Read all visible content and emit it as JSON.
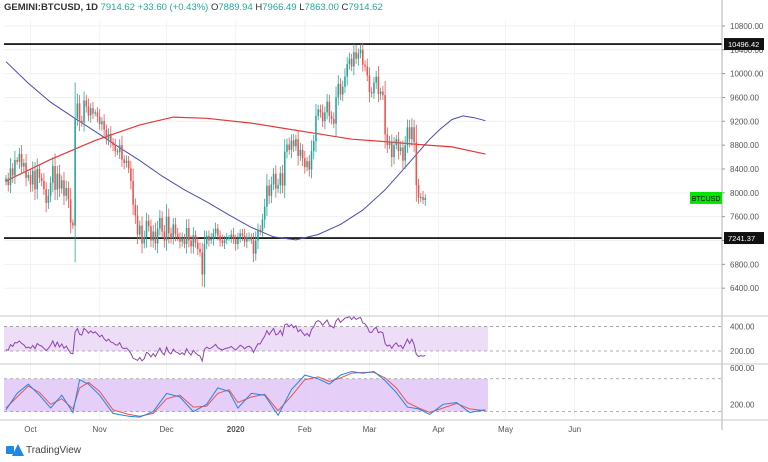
{
  "header": {
    "symbol": "GEMINI:BTCUSD, 1D",
    "last": "7914.62",
    "change": "+33.60 (+0.43%)",
    "o_label": "O",
    "o": "7889.94",
    "h_label": "H",
    "h": "7966.49",
    "l_label": "L",
    "l": "7863.00",
    "c_label": "C",
    "c": "7914.62"
  },
  "branding": {
    "logo_text": "TradingView"
  },
  "colors": {
    "up": "#26a69a",
    "down": "#ef5350",
    "sma_fast": "#4a4ab0",
    "sma_slow": "#e53935",
    "rsi": "#8e44ad",
    "stoch_k": "#1e88e5",
    "stoch_d": "#ef5350",
    "osc_fill": "#e8d5f5",
    "stoch_fill": "#e0c6f7",
    "tag_green": "#00e600"
  },
  "chart_data": {
    "type": "candlestick",
    "symbol_tag": "BTCUSD",
    "price_axis": {
      "min": 6000,
      "max": 10900,
      "ticks": [
        "6400.00",
        "6800.00",
        "7200.00",
        "7600.00",
        "8000.00",
        "8400.00",
        "8800.00",
        "9200.00",
        "9600.00",
        "10000.00",
        "10400.00",
        "10800.00"
      ],
      "tick_values": [
        6400,
        6800,
        7200,
        7600,
        8000,
        8400,
        8800,
        9200,
        9600,
        10000,
        10400,
        10800
      ]
    },
    "time_axis": {
      "labels": [
        "Oct",
        "Nov",
        "Dec",
        "2020",
        "Feb",
        "Mar",
        "Apr",
        "May",
        "Jun"
      ],
      "label_dates": [
        "2019-10-01",
        "2019-11-01",
        "2019-12-01",
        "2020-01-01",
        "2020-02-01",
        "2020-03-01",
        "2020-04-01",
        "2020-05-01",
        "2020-06-01"
      ],
      "start": "2019-09-20",
      "end": "2020-06-01"
    },
    "levels": [
      {
        "label": "10496.42",
        "value": 10496.42
      },
      {
        "label": "7241.37",
        "value": 7241.37
      }
    ],
    "closes": [
      8240,
      8130,
      8410,
      8290,
      8550,
      8520,
      8650,
      8440,
      8500,
      8250,
      8300,
      8140,
      8370,
      8060,
      8400,
      8250,
      8200,
      8060,
      7830,
      7950,
      8170,
      8450,
      8050,
      8320,
      8070,
      8210,
      7950,
      8080,
      7890,
      7500,
      7450,
      9250,
      9500,
      9210,
      9180,
      9550,
      9450,
      9300,
      9420,
      9330,
      9350,
      9280,
      9150,
      9200,
      9060,
      8900,
      8990,
      8850,
      8800,
      8700,
      8680,
      8800,
      8560,
      8500,
      8540,
      8410,
      8200,
      7800,
      7620,
      7300,
      7450,
      7150,
      7250,
      7530,
      7440,
      7200,
      7350,
      7150,
      7400,
      7580,
      7350,
      7200,
      7600,
      7320,
      7240,
      7470,
      7310,
      7260,
      7180,
      7240,
      7140,
      7410,
      7200,
      7100,
      7290,
      7160,
      7060,
      7000,
      6630,
      7140,
      7280,
      7200,
      7230,
      7320,
      7400,
      7280,
      7200,
      7160,
      7210,
      7240,
      7250,
      7300,
      7220,
      7140,
      7230,
      7320,
      7280,
      7180,
      7250,
      7260,
      7200,
      6980,
      7200,
      7380,
      7360,
      7550,
      7770,
      8120,
      7950,
      8140,
      8320,
      8070,
      8130,
      8330,
      8120,
      8690,
      8810,
      8720,
      8880,
      8780,
      8900,
      8620,
      8720,
      8580,
      8430,
      8530,
      8390,
      8700,
      8870,
      9290,
      9400,
      9350,
      9200,
      9350,
      9530,
      9290,
      9240,
      9160,
      9600,
      9830,
      9650,
      9780,
      9950,
      10160,
      10250,
      10120,
      10360,
      10250,
      10340,
      10400,
      10150,
      10120,
      9970,
      9690,
      9670,
      9850,
      9950,
      9660,
      9700,
      9640,
      8980,
      8800,
      8850,
      8600,
      8800,
      8900,
      8700,
      8760,
      8540,
      8800,
      9100,
      8900,
      9100,
      8850,
      8130,
      7920,
      7930,
      7880,
      7914
    ],
    "sma_fast_points": [
      [
        0,
        10200
      ],
      [
        10,
        9840
      ],
      [
        20,
        9520
      ],
      [
        30,
        9270
      ],
      [
        40,
        9030
      ],
      [
        50,
        8780
      ],
      [
        60,
        8540
      ],
      [
        70,
        8280
      ],
      [
        80,
        8050
      ],
      [
        90,
        7850
      ],
      [
        100,
        7630
      ],
      [
        110,
        7420
      ],
      [
        120,
        7260
      ],
      [
        130,
        7210
      ],
      [
        140,
        7300
      ],
      [
        150,
        7470
      ],
      [
        160,
        7710
      ],
      [
        170,
        8050
      ],
      [
        180,
        8470
      ],
      [
        190,
        8900
      ],
      [
        195,
        9080
      ],
      [
        200,
        9230
      ],
      [
        205,
        9290
      ],
      [
        210,
        9260
      ],
      [
        215,
        9210
      ]
    ],
    "sma_slow_points": [
      [
        0,
        8200
      ],
      [
        20,
        8560
      ],
      [
        40,
        8880
      ],
      [
        60,
        9140
      ],
      [
        75,
        9270
      ],
      [
        90,
        9250
      ],
      [
        110,
        9170
      ],
      [
        125,
        9080
      ],
      [
        140,
        8990
      ],
      [
        155,
        8900
      ],
      [
        170,
        8860
      ],
      [
        185,
        8810
      ],
      [
        200,
        8770
      ],
      [
        215,
        8650
      ]
    ],
    "rsi": {
      "ticks": [
        "400.00",
        "200.00"
      ],
      "tick_values": [
        400,
        200
      ],
      "min": 110,
      "max": 470,
      "values": [
        212,
        206,
        252,
        237,
        269,
        266,
        283,
        262,
        251,
        226,
        232,
        221,
        245,
        219,
        261,
        247,
        240,
        222,
        204,
        222,
        247,
        283,
        236,
        273,
        233,
        258,
        222,
        240,
        210,
        181,
        177,
        355,
        383,
        336,
        331,
        385,
        369,
        346,
        365,
        347,
        356,
        339,
        316,
        330,
        301,
        281,
        297,
        273,
        268,
        251,
        248,
        268,
        228,
        219,
        225,
        206,
        180,
        140,
        133,
        123,
        148,
        120,
        138,
        189,
        179,
        152,
        179,
        155,
        191,
        224,
        186,
        168,
        231,
        190,
        176,
        215,
        194,
        186,
        172,
        186,
        170,
        219,
        186,
        167,
        205,
        184,
        167,
        159,
        117,
        215,
        232,
        220,
        224,
        239,
        254,
        228,
        216,
        209,
        217,
        224,
        226,
        237,
        221,
        208,
        226,
        247,
        238,
        218,
        233,
        239,
        226,
        189,
        228,
        260,
        257,
        292,
        321,
        366,
        333,
        361,
        385,
        332,
        339,
        369,
        328,
        415,
        422,
        399,
        418,
        391,
        407,
        358,
        375,
        349,
        327,
        343,
        320,
        375,
        399,
        439,
        449,
        437,
        410,
        433,
        454,
        411,
        402,
        389,
        445,
        467,
        434,
        452,
        469,
        473,
        482,
        457,
        481,
        458,
        469,
        474,
        430,
        422,
        396,
        354,
        351,
        379,
        394,
        350,
        357,
        348,
        262,
        240,
        249,
        222,
        251,
        266,
        238,
        246,
        219,
        258,
        297,
        262,
        296,
        253,
        172,
        155,
        162,
        158,
        163
      ]
    },
    "stoch": {
      "ticks": [
        "600.00",
        "200.00"
      ],
      "tick_values": [
        600,
        200
      ],
      "min": 50,
      "max": 620,
      "upper_band": 480,
      "lower_band": 120,
      "k_points": [
        [
          0,
          140
        ],
        [
          5,
          320
        ],
        [
          10,
          420
        ],
        [
          15,
          300
        ],
        [
          20,
          160
        ],
        [
          25,
          300
        ],
        [
          30,
          110
        ],
        [
          33,
          470
        ],
        [
          37,
          420
        ],
        [
          42,
          300
        ],
        [
          48,
          100
        ],
        [
          55,
          70
        ],
        [
          60,
          60
        ],
        [
          66,
          120
        ],
        [
          72,
          320
        ],
        [
          78,
          280
        ],
        [
          84,
          120
        ],
        [
          90,
          200
        ],
        [
          95,
          380
        ],
        [
          100,
          340
        ],
        [
          104,
          160
        ],
        [
          110,
          320
        ],
        [
          116,
          300
        ],
        [
          122,
          80
        ],
        [
          128,
          360
        ],
        [
          134,
          520
        ],
        [
          140,
          480
        ],
        [
          145,
          420
        ],
        [
          150,
          520
        ],
        [
          155,
          560
        ],
        [
          160,
          540
        ],
        [
          165,
          560
        ],
        [
          170,
          460
        ],
        [
          175,
          330
        ],
        [
          180,
          170
        ],
        [
          185,
          150
        ],
        [
          190,
          90
        ],
        [
          196,
          200
        ],
        [
          202,
          220
        ],
        [
          208,
          110
        ],
        [
          215,
          140
        ]
      ],
      "d_points": [
        [
          0,
          160
        ],
        [
          5,
          280
        ],
        [
          10,
          400
        ],
        [
          15,
          330
        ],
        [
          20,
          200
        ],
        [
          25,
          260
        ],
        [
          30,
          150
        ],
        [
          33,
          380
        ],
        [
          37,
          440
        ],
        [
          42,
          340
        ],
        [
          48,
          140
        ],
        [
          55,
          90
        ],
        [
          60,
          70
        ],
        [
          66,
          100
        ],
        [
          72,
          260
        ],
        [
          78,
          300
        ],
        [
          84,
          170
        ],
        [
          90,
          180
        ],
        [
          95,
          320
        ],
        [
          100,
          360
        ],
        [
          104,
          220
        ],
        [
          110,
          280
        ],
        [
          116,
          310
        ],
        [
          122,
          130
        ],
        [
          128,
          290
        ],
        [
          134,
          470
        ],
        [
          140,
          500
        ],
        [
          145,
          450
        ],
        [
          150,
          490
        ],
        [
          155,
          540
        ],
        [
          160,
          550
        ],
        [
          165,
          550
        ],
        [
          170,
          490
        ],
        [
          175,
          380
        ],
        [
          180,
          220
        ],
        [
          185,
          160
        ],
        [
          190,
          110
        ],
        [
          196,
          160
        ],
        [
          202,
          210
        ],
        [
          208,
          150
        ],
        [
          215,
          130
        ]
      ]
    }
  }
}
